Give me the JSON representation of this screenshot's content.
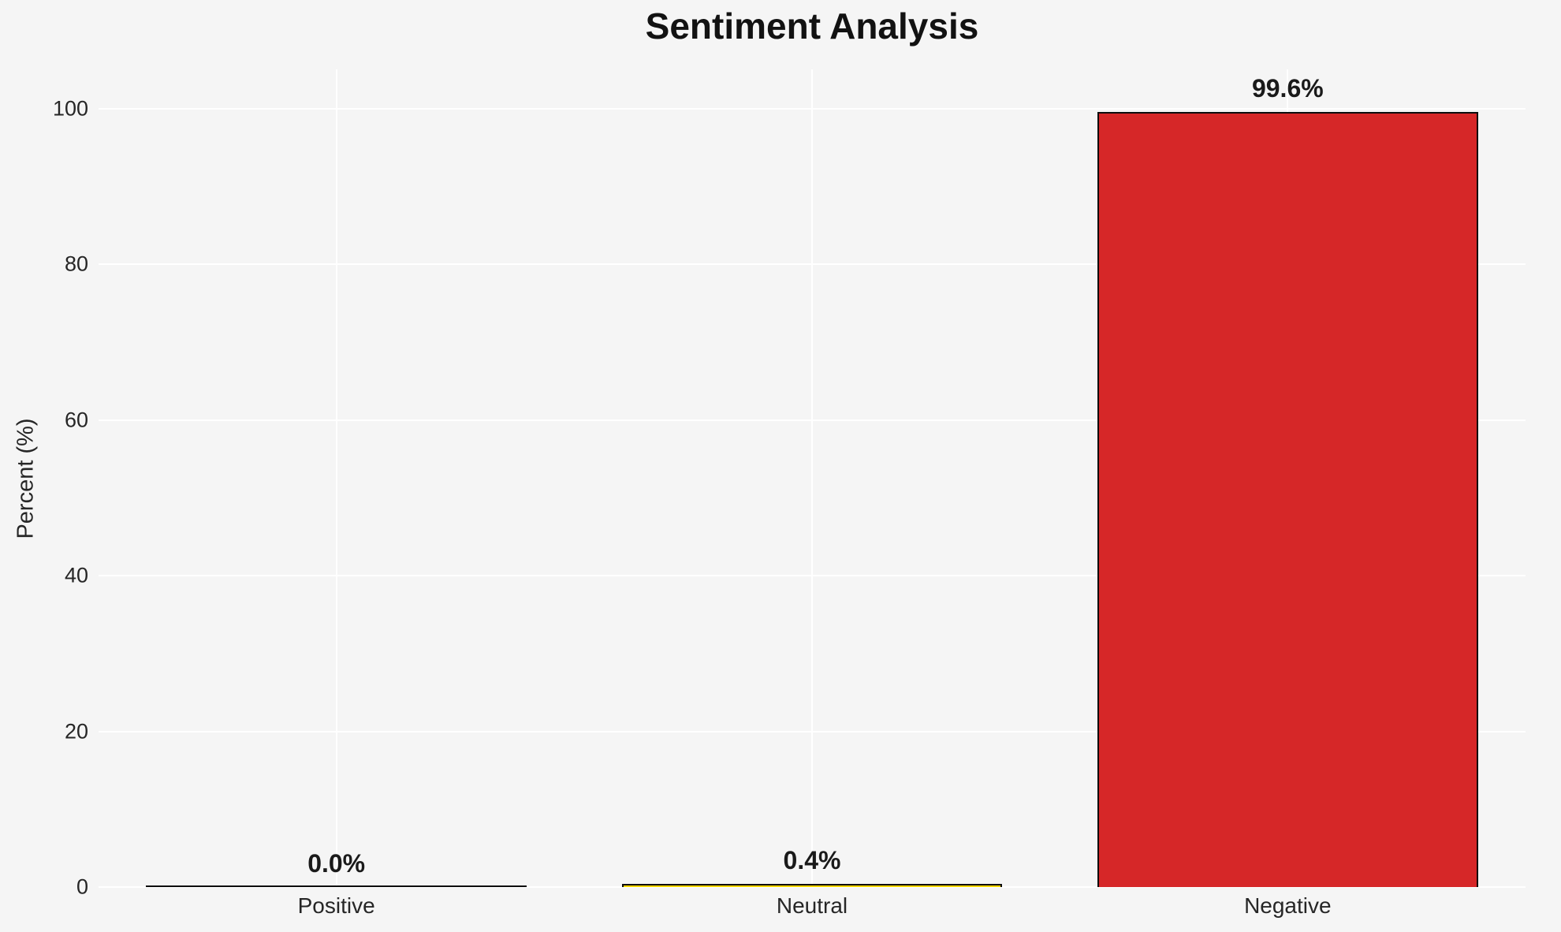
{
  "chart_data": {
    "type": "bar",
    "title": "Sentiment Analysis",
    "categories": [
      "Positive",
      "Neutral",
      "Negative"
    ],
    "values": [
      0.0,
      0.4,
      99.6
    ],
    "value_labels": [
      "0.0%",
      "0.4%",
      "99.6%"
    ],
    "series": [
      {
        "name": "Percent",
        "values": [
          0.0,
          0.4,
          99.6
        ]
      }
    ],
    "bar_colors": [
      "#2ca02c",
      "#ffd700",
      "#d62728"
    ],
    "bar_edge_color": "#0d0d0d",
    "xlabel": "",
    "ylabel": "Percent (%)",
    "yticks": [
      0,
      20,
      40,
      60,
      80,
      100
    ],
    "ylim": [
      0,
      105
    ],
    "grid": "horizontal and vertical white gridlines on light gray background",
    "gridline_color": "#ffffff",
    "background_color": "#f5f5f5",
    "legend_position": "none",
    "bar_width_fraction": 0.8
  }
}
